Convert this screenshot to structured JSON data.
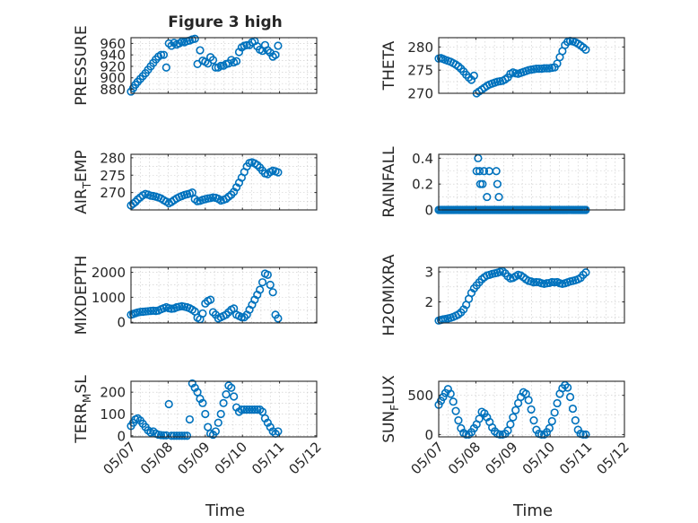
{
  "figure": {
    "title": "Figure 3 high",
    "xlabel": "Time"
  },
  "style": {
    "marker_color": "#0072BD",
    "axis_color": "#262626",
    "grid_color": "#c8c8c8"
  },
  "chart_data": [
    {
      "type": "scatter",
      "ylabel": "PRESSURE",
      "ylim": [
        873,
        970
      ],
      "yticks": [
        880,
        900,
        920,
        940,
        960
      ],
      "xlim": [
        0,
        5
      ],
      "xticks": [
        0,
        1,
        2,
        3,
        4,
        5
      ],
      "xticklabels": [
        "05/07",
        "05/08",
        "05/09",
        "05/10",
        "05/11",
        "05/12"
      ],
      "show_xticklabels": false,
      "grid": true,
      "x": [
        0.0,
        0.06,
        0.12,
        0.18,
        0.25,
        0.32,
        0.39,
        0.46,
        0.53,
        0.6,
        0.67,
        0.74,
        0.81,
        0.88,
        0.95,
        1.02,
        1.09,
        1.16,
        1.23,
        1.3,
        1.37,
        1.44,
        1.51,
        1.58,
        1.65,
        1.72,
        1.79,
        1.86,
        1.93,
        2.0,
        2.07,
        2.14,
        2.21,
        2.28,
        2.35,
        2.42,
        2.49,
        2.56,
        2.63,
        2.7,
        2.77,
        2.84,
        2.91,
        2.98,
        3.05,
        3.12,
        3.19,
        3.26,
        3.33,
        3.4,
        3.47,
        3.54,
        3.61,
        3.68,
        3.75,
        3.82,
        3.89,
        3.96
      ],
      "values": [
        876,
        882,
        888,
        893,
        898,
        903,
        908,
        914,
        920,
        926,
        932,
        937,
        940,
        940,
        918,
        960,
        956,
        961,
        958,
        960,
        963,
        962,
        964,
        965,
        967,
        968,
        924,
        948,
        930,
        928,
        925,
        936,
        931,
        918,
        918,
        921,
        921,
        924,
        925,
        931,
        927,
        929,
        945,
        953,
        956,
        957,
        957,
        962,
        964,
        955,
        949,
        947,
        957,
        948,
        944,
        937,
        940,
        956
      ]
    },
    {
      "type": "scatter",
      "ylabel": "THETA",
      "ylim": [
        270,
        282
      ],
      "yticks": [
        270,
        275,
        280
      ],
      "xlim": [
        0,
        5
      ],
      "xticks": [
        0,
        1,
        2,
        3,
        4,
        5
      ],
      "xticklabels": [
        "05/07",
        "05/08",
        "05/09",
        "05/10",
        "05/11",
        "05/12"
      ],
      "show_xticklabels": false,
      "grid": true,
      "x": [
        0.0,
        0.06,
        0.12,
        0.18,
        0.25,
        0.32,
        0.39,
        0.46,
        0.53,
        0.6,
        0.67,
        0.74,
        0.81,
        0.88,
        0.95,
        1.02,
        1.09,
        1.16,
        1.23,
        1.3,
        1.37,
        1.44,
        1.51,
        1.58,
        1.65,
        1.72,
        1.79,
        1.86,
        1.93,
        2.0,
        2.07,
        2.14,
        2.21,
        2.28,
        2.35,
        2.42,
        2.49,
        2.56,
        2.63,
        2.7,
        2.77,
        2.84,
        2.91,
        2.98,
        3.05,
        3.12,
        3.19,
        3.26,
        3.33,
        3.4,
        3.47,
        3.54,
        3.61,
        3.68,
        3.75,
        3.82,
        3.89,
        3.96
      ],
      "values": [
        277.5,
        277.6,
        277.4,
        277.2,
        277.0,
        276.8,
        276.5,
        276.2,
        275.8,
        275.3,
        274.7,
        274.0,
        273.4,
        272.9,
        273.8,
        270.0,
        270.4,
        270.8,
        271.2,
        271.6,
        271.9,
        272.1,
        272.3,
        272.5,
        272.6,
        272.7,
        273.0,
        273.4,
        274.2,
        274.5,
        274.3,
        274.2,
        274.4,
        274.6,
        274.8,
        275.0,
        275.1,
        275.2,
        275.3,
        275.3,
        275.3,
        275.4,
        275.4,
        275.4,
        275.5,
        275.6,
        276.4,
        277.8,
        279.1,
        280.4,
        281.1,
        281.3,
        281.2,
        281.0,
        280.7,
        280.3,
        279.9,
        279.4
      ]
    },
    {
      "type": "scatter",
      "ylabel": "AIR_TEMP",
      "ylabel_main": "AIR",
      "ylabel_sub": "T",
      "ylabel_rest": "EMP",
      "ylim": [
        265,
        281
      ],
      "yticks": [
        270,
        275,
        280
      ],
      "xlim": [
        0,
        5
      ],
      "xticks": [
        0,
        1,
        2,
        3,
        4,
        5
      ],
      "xticklabels": [
        "05/07",
        "05/08",
        "05/09",
        "05/10",
        "05/11",
        "05/12"
      ],
      "show_xticklabels": false,
      "grid": true,
      "x": [
        0.0,
        0.06,
        0.12,
        0.18,
        0.25,
        0.32,
        0.39,
        0.46,
        0.53,
        0.6,
        0.67,
        0.74,
        0.81,
        0.88,
        0.95,
        1.02,
        1.09,
        1.16,
        1.23,
        1.3,
        1.37,
        1.44,
        1.51,
        1.58,
        1.65,
        1.72,
        1.79,
        1.86,
        1.93,
        2.0,
        2.07,
        2.14,
        2.21,
        2.28,
        2.35,
        2.42,
        2.49,
        2.56,
        2.63,
        2.7,
        2.77,
        2.84,
        2.91,
        2.98,
        3.05,
        3.12,
        3.19,
        3.26,
        3.33,
        3.4,
        3.47,
        3.54,
        3.61,
        3.68,
        3.75,
        3.82,
        3.89,
        3.96
      ],
      "values": [
        266.3,
        266.8,
        267.3,
        268.0,
        268.6,
        269.2,
        269.6,
        269.4,
        269.1,
        269.0,
        268.8,
        268.6,
        268.3,
        267.8,
        267.4,
        266.9,
        267.3,
        267.8,
        268.3,
        268.7,
        269.0,
        269.3,
        269.5,
        269.7,
        270.0,
        268.1,
        267.5,
        267.6,
        267.9,
        268.1,
        268.3,
        268.4,
        268.6,
        268.5,
        268.2,
        267.7,
        267.9,
        268.2,
        268.8,
        269.4,
        270.2,
        271.5,
        272.8,
        274.3,
        275.9,
        277.5,
        278.5,
        278.7,
        278.4,
        277.9,
        277.2,
        276.3,
        275.5,
        275.3,
        275.9,
        276.3,
        276.1,
        275.8
      ]
    },
    {
      "type": "scatter",
      "ylabel": "RAINFALL",
      "ylim": [
        0,
        0.43
      ],
      "yticks": [
        0,
        0.2,
        0.4
      ],
      "xlim": [
        0,
        5
      ],
      "xticks": [
        0,
        1,
        2,
        3,
        4,
        5
      ],
      "xticklabels": [
        "05/07",
        "05/08",
        "05/09",
        "05/10",
        "05/11",
        "05/12"
      ],
      "show_xticklabels": false,
      "grid": true,
      "x": [
        0.0,
        0.04,
        0.08,
        0.12,
        0.16,
        0.2,
        0.24,
        0.28,
        0.32,
        0.36,
        0.4,
        0.44,
        0.48,
        0.52,
        0.56,
        0.6,
        0.64,
        0.68,
        0.72,
        0.76,
        0.8,
        0.84,
        0.88,
        0.92,
        0.96,
        1.0,
        1.04,
        1.08,
        1.12,
        1.16,
        1.2,
        1.24,
        1.28,
        1.32,
        1.36,
        1.4,
        1.44,
        1.48,
        1.52,
        1.56,
        1.6,
        1.64,
        1.68,
        1.72,
        1.76,
        1.8,
        1.84,
        1.88,
        1.92,
        1.96,
        2.0,
        2.04,
        2.08,
        2.12,
        2.16,
        2.2,
        2.24,
        2.28,
        2.32,
        2.36,
        2.4,
        2.44,
        2.48,
        2.52,
        2.56,
        2.6,
        2.64,
        2.68,
        2.72,
        2.76,
        2.8,
        2.84,
        2.88,
        2.92,
        2.96,
        3.0,
        3.04,
        3.08,
        3.12,
        3.16,
        3.2,
        3.24,
        3.28,
        3.32,
        3.36,
        3.4,
        3.44,
        3.48,
        3.52,
        3.56,
        3.6,
        3.64,
        3.68,
        3.72,
        3.76,
        3.8,
        3.84,
        3.88,
        3.92,
        3.96,
        1.02,
        1.06,
        1.1,
        1.12,
        1.18,
        1.22,
        1.3,
        1.36,
        1.55,
        1.58,
        1.62
      ],
      "values": [
        0,
        0,
        0,
        0,
        0,
        0,
        0,
        0,
        0,
        0,
        0,
        0,
        0,
        0,
        0,
        0,
        0,
        0,
        0,
        0,
        0,
        0,
        0,
        0,
        0,
        0,
        0,
        0,
        0,
        0,
        0,
        0,
        0,
        0,
        0,
        0,
        0,
        0,
        0,
        0,
        0,
        0,
        0,
        0,
        0,
        0,
        0,
        0,
        0,
        0,
        0,
        0,
        0,
        0,
        0,
        0,
        0,
        0,
        0,
        0,
        0,
        0,
        0,
        0,
        0,
        0,
        0,
        0,
        0,
        0,
        0,
        0,
        0,
        0,
        0,
        0,
        0,
        0,
        0,
        0,
        0,
        0,
        0,
        0,
        0,
        0,
        0,
        0,
        0,
        0,
        0,
        0,
        0,
        0,
        0,
        0,
        0,
        0,
        0,
        0,
        0.3,
        0.4,
        0.3,
        0.2,
        0.2,
        0.3,
        0.1,
        0.3,
        0.3,
        0.2,
        0.1
      ]
    },
    {
      "type": "scatter",
      "ylabel": "MIXDEPTH",
      "ylim": [
        -30,
        2200
      ],
      "yticks": [
        0,
        1000,
        2000
      ],
      "xlim": [
        0,
        5
      ],
      "xticks": [
        0,
        1,
        2,
        3,
        4,
        5
      ],
      "xticklabels": [
        "05/07",
        "05/08",
        "05/09",
        "05/10",
        "05/11",
        "05/12"
      ],
      "show_xticklabels": false,
      "grid": true,
      "x": [
        0.0,
        0.06,
        0.12,
        0.18,
        0.25,
        0.32,
        0.39,
        0.46,
        0.53,
        0.6,
        0.67,
        0.74,
        0.81,
        0.88,
        0.95,
        1.02,
        1.09,
        1.16,
        1.23,
        1.3,
        1.37,
        1.44,
        1.51,
        1.58,
        1.65,
        1.72,
        1.79,
        1.86,
        1.93,
        2.0,
        2.07,
        2.14,
        2.21,
        2.28,
        2.35,
        2.42,
        2.49,
        2.56,
        2.63,
        2.7,
        2.77,
        2.84,
        2.91,
        2.98,
        3.05,
        3.12,
        3.19,
        3.26,
        3.33,
        3.4,
        3.47,
        3.54,
        3.61,
        3.68,
        3.75,
        3.82,
        3.89,
        3.96
      ],
      "values": [
        300,
        330,
        360,
        390,
        410,
        420,
        430,
        440,
        450,
        460,
        450,
        470,
        520,
        560,
        600,
        560,
        540,
        550,
        600,
        620,
        640,
        620,
        600,
        560,
        500,
        430,
        180,
        120,
        350,
        750,
        850,
        900,
        400,
        300,
        150,
        200,
        250,
        300,
        400,
        500,
        550,
        300,
        250,
        200,
        200,
        300,
        500,
        700,
        900,
        1100,
        1300,
        1600,
        1950,
        1900,
        1500,
        1200,
        300,
        150
      ]
    },
    {
      "type": "scatter",
      "ylabel": "H2OMIXRA",
      "ylim": [
        1.3,
        3.15
      ],
      "yticks": [
        2,
        3
      ],
      "xlim": [
        0,
        5
      ],
      "xticks": [
        0,
        1,
        2,
        3,
        4,
        5
      ],
      "xticklabels": [
        "05/07",
        "05/08",
        "05/09",
        "05/10",
        "05/11",
        "05/12"
      ],
      "show_xticklabels": false,
      "grid": true,
      "x": [
        0.0,
        0.06,
        0.12,
        0.18,
        0.25,
        0.32,
        0.39,
        0.46,
        0.53,
        0.6,
        0.67,
        0.74,
        0.81,
        0.88,
        0.95,
        1.02,
        1.09,
        1.16,
        1.23,
        1.3,
        1.37,
        1.44,
        1.51,
        1.58,
        1.65,
        1.72,
        1.79,
        1.86,
        1.93,
        2.0,
        2.07,
        2.14,
        2.21,
        2.28,
        2.35,
        2.42,
        2.49,
        2.56,
        2.63,
        2.7,
        2.77,
        2.84,
        2.91,
        2.98,
        3.05,
        3.12,
        3.19,
        3.26,
        3.33,
        3.4,
        3.47,
        3.54,
        3.61,
        3.68,
        3.75,
        3.82,
        3.89,
        3.96
      ],
      "values": [
        1.38,
        1.4,
        1.42,
        1.43,
        1.45,
        1.47,
        1.5,
        1.54,
        1.58,
        1.65,
        1.75,
        1.9,
        2.1,
        2.3,
        2.45,
        2.55,
        2.65,
        2.75,
        2.82,
        2.88,
        2.9,
        2.93,
        2.95,
        2.97,
        3.0,
        3.02,
        2.95,
        2.85,
        2.78,
        2.8,
        2.85,
        2.9,
        2.88,
        2.82,
        2.75,
        2.7,
        2.68,
        2.65,
        2.66,
        2.65,
        2.62,
        2.6,
        2.62,
        2.63,
        2.66,
        2.65,
        2.66,
        2.62,
        2.6,
        2.62,
        2.65,
        2.68,
        2.7,
        2.72,
        2.75,
        2.8,
        2.9,
        2.98
      ]
    },
    {
      "type": "scatter",
      "ylabel": "TERR_MSL",
      "ylabel_main": "TERR",
      "ylabel_sub": "M",
      "ylabel_rest": "SL",
      "ylim": [
        -5,
        250
      ],
      "yticks": [
        0,
        100,
        200
      ],
      "xlim": [
        0,
        5
      ],
      "xticks": [
        0,
        1,
        2,
        3,
        4,
        5
      ],
      "xticklabels": [
        "05/07",
        "05/08",
        "05/09",
        "05/10",
        "05/11",
        "05/12"
      ],
      "show_xticklabels": true,
      "grid": true,
      "x": [
        0.0,
        0.06,
        0.12,
        0.18,
        0.25,
        0.32,
        0.39,
        0.46,
        0.53,
        0.6,
        0.67,
        0.74,
        0.81,
        0.88,
        0.95,
        1.02,
        1.09,
        1.16,
        1.23,
        1.3,
        1.37,
        1.44,
        1.51,
        1.58,
        1.65,
        1.72,
        1.79,
        1.86,
        1.93,
        2.0,
        2.07,
        2.14,
        2.21,
        2.28,
        2.35,
        2.42,
        2.49,
        2.56,
        2.63,
        2.7,
        2.77,
        2.84,
        2.91,
        2.98,
        3.05,
        3.12,
        3.19,
        3.26,
        3.33,
        3.4,
        3.47,
        3.54,
        3.61,
        3.68,
        3.75,
        3.82,
        3.89,
        3.96
      ],
      "values": [
        45,
        60,
        75,
        80,
        70,
        55,
        40,
        25,
        15,
        20,
        10,
        5,
        3,
        2,
        2,
        145,
        0,
        0,
        0,
        0,
        0,
        0,
        0,
        75,
        240,
        220,
        200,
        170,
        150,
        100,
        40,
        10,
        5,
        20,
        60,
        100,
        150,
        190,
        230,
        220,
        180,
        130,
        110,
        120,
        120,
        120,
        120,
        120,
        120,
        120,
        120,
        110,
        80,
        60,
        40,
        20,
        10,
        20
      ]
    },
    {
      "type": "scatter",
      "ylabel": "SUN_FLUX",
      "ylabel_main": "SUN",
      "ylabel_sub": "F",
      "ylabel_rest": "LUX",
      "ylim": [
        -30,
        680
      ],
      "yticks": [
        0,
        500
      ],
      "xlim": [
        0,
        5
      ],
      "xticks": [
        0,
        1,
        2,
        3,
        4,
        5
      ],
      "xticklabels": [
        "05/07",
        "05/08",
        "05/09",
        "05/10",
        "05/11",
        "05/12"
      ],
      "show_xticklabels": true,
      "grid": true,
      "x": [
        0.0,
        0.06,
        0.12,
        0.18,
        0.25,
        0.32,
        0.39,
        0.46,
        0.53,
        0.6,
        0.67,
        0.74,
        0.81,
        0.88,
        0.95,
        1.02,
        1.09,
        1.16,
        1.23,
        1.3,
        1.37,
        1.44,
        1.51,
        1.58,
        1.65,
        1.72,
        1.79,
        1.86,
        1.93,
        2.0,
        2.07,
        2.14,
        2.21,
        2.28,
        2.35,
        2.42,
        2.49,
        2.56,
        2.63,
        2.7,
        2.77,
        2.84,
        2.91,
        2.98,
        3.05,
        3.12,
        3.19,
        3.26,
        3.33,
        3.4,
        3.47,
        3.54,
        3.61,
        3.68,
        3.75,
        3.82,
        3.89,
        3.96
      ],
      "values": [
        380,
        430,
        480,
        530,
        580,
        520,
        420,
        300,
        180,
        80,
        20,
        0,
        0,
        30,
        80,
        130,
        200,
        290,
        270,
        220,
        160,
        90,
        40,
        10,
        0,
        0,
        10,
        50,
        130,
        220,
        310,
        400,
        480,
        540,
        520,
        440,
        320,
        180,
        60,
        10,
        0,
        0,
        30,
        80,
        170,
        280,
        400,
        520,
        590,
        630,
        600,
        480,
        330,
        180,
        60,
        10,
        0,
        0
      ]
    }
  ]
}
